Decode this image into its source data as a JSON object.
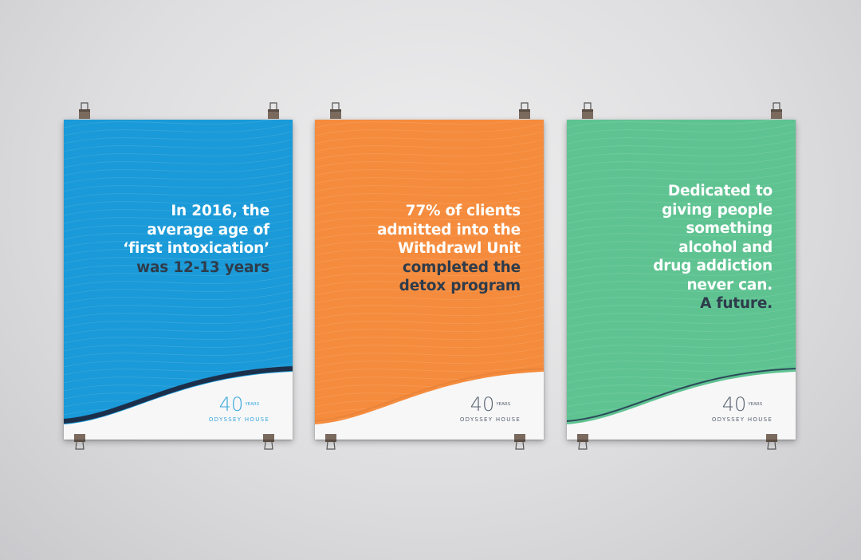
{
  "posters": [
    {
      "id": "blue",
      "color": "#1a9ad8",
      "stroke": "#1c2f4a",
      "logo_color": "#3aa8dc",
      "lines": [
        {
          "text": "In 2016, the",
          "tone": "light"
        },
        {
          "text": "average age of",
          "tone": "light"
        },
        {
          "text": "‘first intoxication’",
          "tone": "light"
        },
        {
          "text": "was 12-13 years",
          "tone": "dark"
        }
      ],
      "logo": {
        "number": "40",
        "years": "YEARS",
        "name": "ODYSSEY HOUSE"
      }
    },
    {
      "id": "orange",
      "color": "#f58b3c",
      "stroke": "#e9843a",
      "logo_color": "#5a6470",
      "lines": [
        {
          "text": "77% of clients",
          "tone": "light"
        },
        {
          "text": "admitted into the",
          "tone": "light"
        },
        {
          "text": "Withdrawl Unit",
          "tone": "light"
        },
        {
          "text": "completed the",
          "tone": "dark"
        },
        {
          "text": "detox program",
          "tone": "dark"
        }
      ],
      "logo": {
        "number": "40",
        "years": "YEARS",
        "name": "ODYSSEY HOUSE"
      }
    },
    {
      "id": "green",
      "color": "#5ec391",
      "stroke": "#2d4a5a",
      "logo_color": "#5a6470",
      "lines": [
        {
          "text": "Dedicated to",
          "tone": "light"
        },
        {
          "text": "giving people",
          "tone": "light"
        },
        {
          "text": "something",
          "tone": "light"
        },
        {
          "text": "alcohol and",
          "tone": "light"
        },
        {
          "text": "drug addiction",
          "tone": "light"
        },
        {
          "text": "never can.",
          "tone": "light"
        },
        {
          "text": "A future.",
          "tone": "dark"
        }
      ],
      "logo": {
        "number": "40",
        "years": "YEARS",
        "name": "ODYSSEY HOUSE"
      }
    }
  ]
}
